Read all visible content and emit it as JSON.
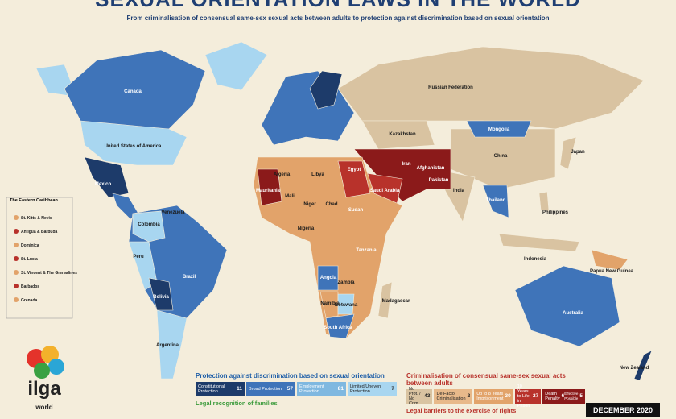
{
  "header": {
    "title": "SEXUAL ORIENTATION LAWS IN THE WORLD",
    "subtitle": "From criminalisation of consensual same-sex sexual acts between adults to protection against discrimination based on sexual orientation"
  },
  "map": {
    "labels": [
      "Canada",
      "United States of America",
      "Mexico",
      "Colombia",
      "Venezuela",
      "Peru",
      "Brazil",
      "Bolivia",
      "Argentina",
      "Russian Federation",
      "Kazakhstan",
      "Mongolia",
      "China",
      "India",
      "Iran",
      "Afghanistan",
      "Pakistan",
      "Saudi Arabia",
      "Algeria",
      "Libya",
      "Egypt",
      "Mauritania",
      "Mali",
      "Niger",
      "Chad",
      "Sudan",
      "Nigeria",
      "Angola",
      "Zambia",
      "Namibia",
      "Botswana",
      "South Africa",
      "Madagascar",
      "Tanzania",
      "Thailand",
      "Indonesia",
      "Papua New Guinea",
      "Philippines",
      "Japan",
      "Australia",
      "New Zealand"
    ],
    "inset": {
      "title": "The Eastern Caribbean",
      "labels": [
        "St. Kitts & Nevis",
        "Antigua & Barbuda",
        "Dominica",
        "St. Lucia",
        "St. Vincent & The Grenadines",
        "Barbados",
        "Grenada"
      ]
    }
  },
  "legend": {
    "protection": {
      "title": "Protection against discrimination based on sexual orientation",
      "items": [
        {
          "label": "Constitutional Protection",
          "count": 11,
          "color": "#1d3b6a"
        },
        {
          "label": "Broad Protection",
          "count": 57,
          "color": "#3f74b9"
        },
        {
          "label": "Employment Protection",
          "count": 81,
          "color": "#7fb8e0"
        },
        {
          "label": "Limited/Uneven Protection",
          "count": 7,
          "color": "#a8d6f0"
        }
      ]
    },
    "criminalisation": {
      "title": "Criminalisation of consensual same-sex sexual acts between adults",
      "items": [
        {
          "label": "No Prot. / No Crim.",
          "count": 43,
          "color": "#d9c3a1"
        },
        {
          "label": "De Facto Criminalisation",
          "count": 2,
          "color": "#e8b98a"
        },
        {
          "label": "Up to 8 Years Imprisonment",
          "count": 30,
          "color": "#e2a36a"
        },
        {
          "label": "10 Years to Life in Prison",
          "count": 27,
          "color": "#b8322b"
        },
        {
          "label": "Death Penalty",
          "count": 6,
          "note": "Effective",
          "count2": 5,
          "note2": "Possible",
          "color": "#8b1a1a"
        }
      ]
    },
    "families_title": "Legal recognition of families",
    "barriers_title": "Legal barriers to the exercise of rights"
  },
  "date": "DECEMBER 2020",
  "logo": {
    "name": "ilga",
    "sub": "world"
  }
}
